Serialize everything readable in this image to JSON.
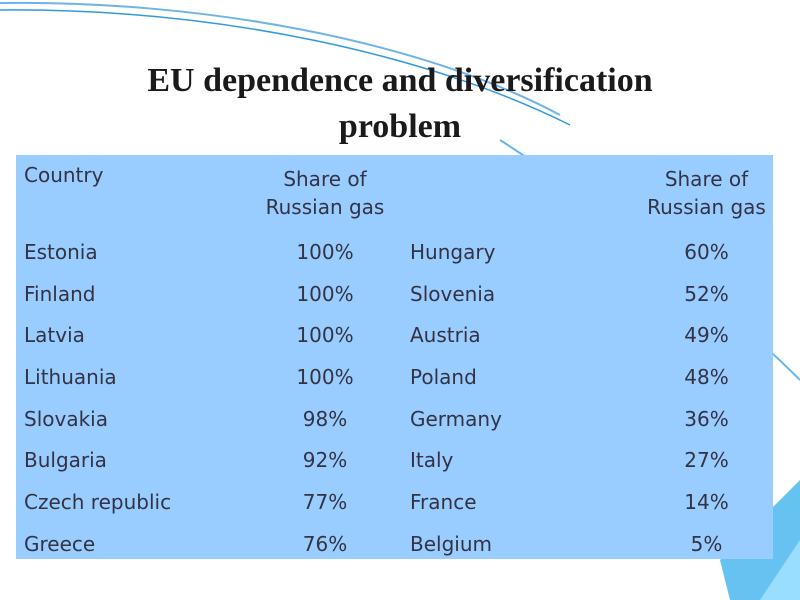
{
  "title_line1": "EU dependence and diversification",
  "title_line2": "problem",
  "table": {
    "header": {
      "country": "Country",
      "share_left": [
        "Share of",
        "Russian gas"
      ],
      "share_right": [
        "Share of",
        "Russian gas"
      ]
    },
    "rows": [
      {
        "c1": "Estonia",
        "s1": "100%",
        "c2": "Hungary",
        "s2": "60%"
      },
      {
        "c1": "Finland",
        "s1": "100%",
        "c2": "Slovenia",
        "s2": "52%"
      },
      {
        "c1": "Latvia",
        "s1": "100%",
        "c2": "Austria",
        "s2": "49%"
      },
      {
        "c1": "Lithuania",
        "s1": "100%",
        "c2": "Poland",
        "s2": "48%"
      },
      {
        "c1": "Slovakia",
        "s1": "98%",
        "c2": "Germany",
        "s2": "36%"
      },
      {
        "c1": "Bulgaria",
        "s1": "92%",
        "c2": "Italy",
        "s2": "27%"
      },
      {
        "c1": "Czech republic",
        "s1": "77%",
        "c2": "France",
        "s2": "14%"
      },
      {
        "c1": "Greece",
        "s1": "76%",
        "c2": "Belgium",
        "s2": "5%"
      }
    ]
  },
  "colors": {
    "table_background": "#99ccff",
    "table_text": "#333344",
    "decoration": "#3399dd"
  }
}
